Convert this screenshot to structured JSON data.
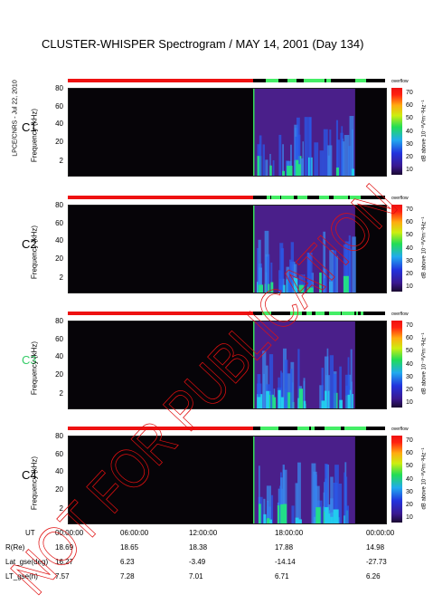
{
  "title": "CLUSTER-WHISPER Spectrogram / MAY 14, 2001 (Day 134)",
  "side_note": "LPCE/CNRS - Jul 22, 2010",
  "y_axis_label": "Frequency (kHz)",
  "colorbar": {
    "label": "dB above 10⁻⁸V²m⁻²Hz⁻¹",
    "top_text": "overflow",
    "ticks": [
      "70",
      "60",
      "50",
      "40",
      "30",
      "20",
      "10"
    ]
  },
  "watermark": "NOT FOR PUBLICATION",
  "colors": {
    "background": "#060408",
    "status_red": "#ee1111",
    "status_green": "#44ee66",
    "c3_label": "#33cc66"
  },
  "chart_data": [
    {
      "type": "heatmap",
      "satellite": "C1",
      "xlabel": "UT",
      "ylabel": "Frequency (kHz)",
      "xlim": [
        "00:00:00",
        "24:00:00"
      ],
      "ylim": [
        2,
        80
      ],
      "y_ticks": [
        "80",
        "60",
        "40",
        "20",
        "2"
      ],
      "colorbar_range_db": [
        10,
        70
      ],
      "active_interval_ut": [
        "14:00:00",
        "21:40:00"
      ]
    },
    {
      "type": "heatmap",
      "satellite": "C2",
      "xlabel": "UT",
      "ylabel": "Frequency (kHz)",
      "xlim": [
        "00:00:00",
        "24:00:00"
      ],
      "ylim": [
        2,
        80
      ],
      "y_ticks": [
        "80",
        "60",
        "40",
        "20",
        "2"
      ],
      "colorbar_range_db": [
        10,
        70
      ],
      "active_interval_ut": [
        "14:00:00",
        "21:40:00"
      ]
    },
    {
      "type": "heatmap",
      "satellite": "C3",
      "xlabel": "UT",
      "ylabel": "Frequency (kHz)",
      "xlim": [
        "00:00:00",
        "24:00:00"
      ],
      "ylim": [
        2,
        80
      ],
      "y_ticks": [
        "80",
        "60",
        "40",
        "20",
        "2"
      ],
      "colorbar_range_db": [
        10,
        70
      ],
      "active_interval_ut": [
        "14:00:00",
        "21:40:00"
      ]
    },
    {
      "type": "heatmap",
      "satellite": "C4",
      "xlabel": "UT",
      "ylabel": "Frequency (kHz)",
      "xlim": [
        "00:00:00",
        "24:00:00"
      ],
      "ylim": [
        2,
        80
      ],
      "y_ticks": [
        "80",
        "60",
        "40",
        "20",
        "2"
      ],
      "colorbar_range_db": [
        10,
        70
      ],
      "active_interval_ut": [
        "14:00:00",
        "21:40:00"
      ]
    }
  ],
  "ephemeris": {
    "rows": [
      {
        "label": "UT",
        "values": [
          "00:00:00",
          "06:00:00",
          "12:00:00",
          "18:00:00",
          "00:00:00"
        ]
      },
      {
        "label": "R(Re)",
        "values": [
          "18.69",
          "18.65",
          "18.38",
          "17.88",
          "14.98"
        ]
      },
      {
        "label": "Lat_gse(deg)",
        "values": [
          "16.27",
          "6.23",
          "-3.49",
          "-14.14",
          "-27.73"
        ]
      },
      {
        "label": "LT_gse(h)",
        "values": [
          "7.57",
          "7.28",
          "7.01",
          "6.71",
          "6.26"
        ]
      }
    ]
  }
}
